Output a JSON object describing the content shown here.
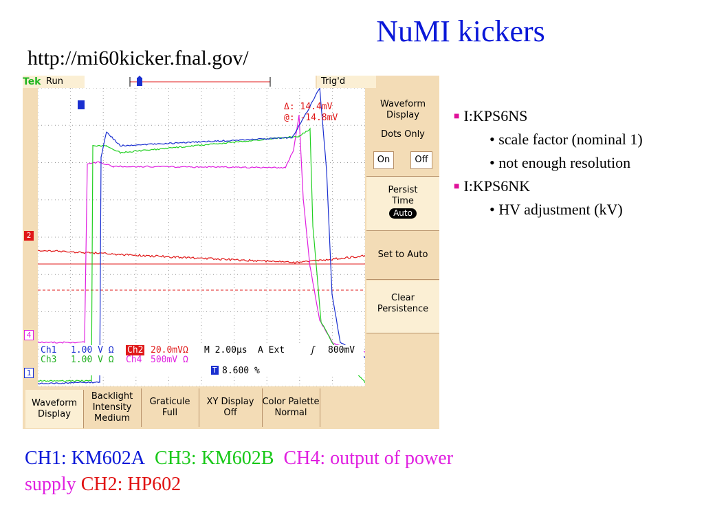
{
  "slide": {
    "title": "NuMI kickers",
    "url": "http://mi60kicker.fnal.gov/"
  },
  "scope": {
    "brand": "Tek",
    "run_state": "Run",
    "trigger_state": "Trig'd",
    "cursor_delta": "Δ: 14.4mV",
    "cursor_at": "@: -14.8mV",
    "ref_markers": [
      "2",
      "4",
      "1"
    ],
    "trigger_marker": "T",
    "status": {
      "ch1_label": "Ch1",
      "ch1_scale": "1.00 V Ω",
      "ch2_label": "Ch2",
      "ch2_scale": "20.0mVΩ",
      "ch3_label": "Ch3",
      "ch3_scale": "1.00 V Ω",
      "ch4_label": "Ch4",
      "ch4_scale": "500mV Ω",
      "timebase": "M 2.00µs",
      "trigger_src": "A   Ext",
      "trigger_level": "800mV",
      "trigger_pos": "8.600 %"
    },
    "right_menu": {
      "waveform_display": "Waveform Display",
      "dots_only": "Dots Only",
      "on": "On",
      "off": "Off",
      "persist": "Persist Time",
      "persist_value": "Auto",
      "set_to_auto": "Set to Auto",
      "clear_persistence": "Clear Persistence"
    },
    "bottom_menu": [
      {
        "label": "Waveform Display"
      },
      {
        "label": "Backlight Intensity Medium"
      },
      {
        "label": "Graticule Full"
      },
      {
        "label": "XY Display Off"
      },
      {
        "label": "Color Palette Normal"
      }
    ],
    "colors": {
      "ch1": "#1a2fd0",
      "ch2": "#e01818",
      "ch3": "#22d022",
      "ch4": "#e020e0",
      "bezel": "#f3dcb6"
    }
  },
  "bullets": [
    {
      "level": 1,
      "text": "I:KPS6NS"
    },
    {
      "level": 2,
      "text": "• scale factor (nominal 1)"
    },
    {
      "level": 2,
      "text": "• not enough resolution"
    },
    {
      "level": 1,
      "text": "I:KPS6NK"
    },
    {
      "level": 2,
      "text": "• HV adjustment (kV)"
    }
  ],
  "caption": {
    "ch1": "CH1: KM602A",
    "ch3": "CH3: KM602B",
    "ch4": "CH4: output of power supply",
    "ch2": "CH2: HP602",
    "colors": {
      "ch1": "#0a18d8",
      "ch3": "#18c818",
      "ch4": "#e020e0",
      "ch2": "#e01010"
    }
  }
}
